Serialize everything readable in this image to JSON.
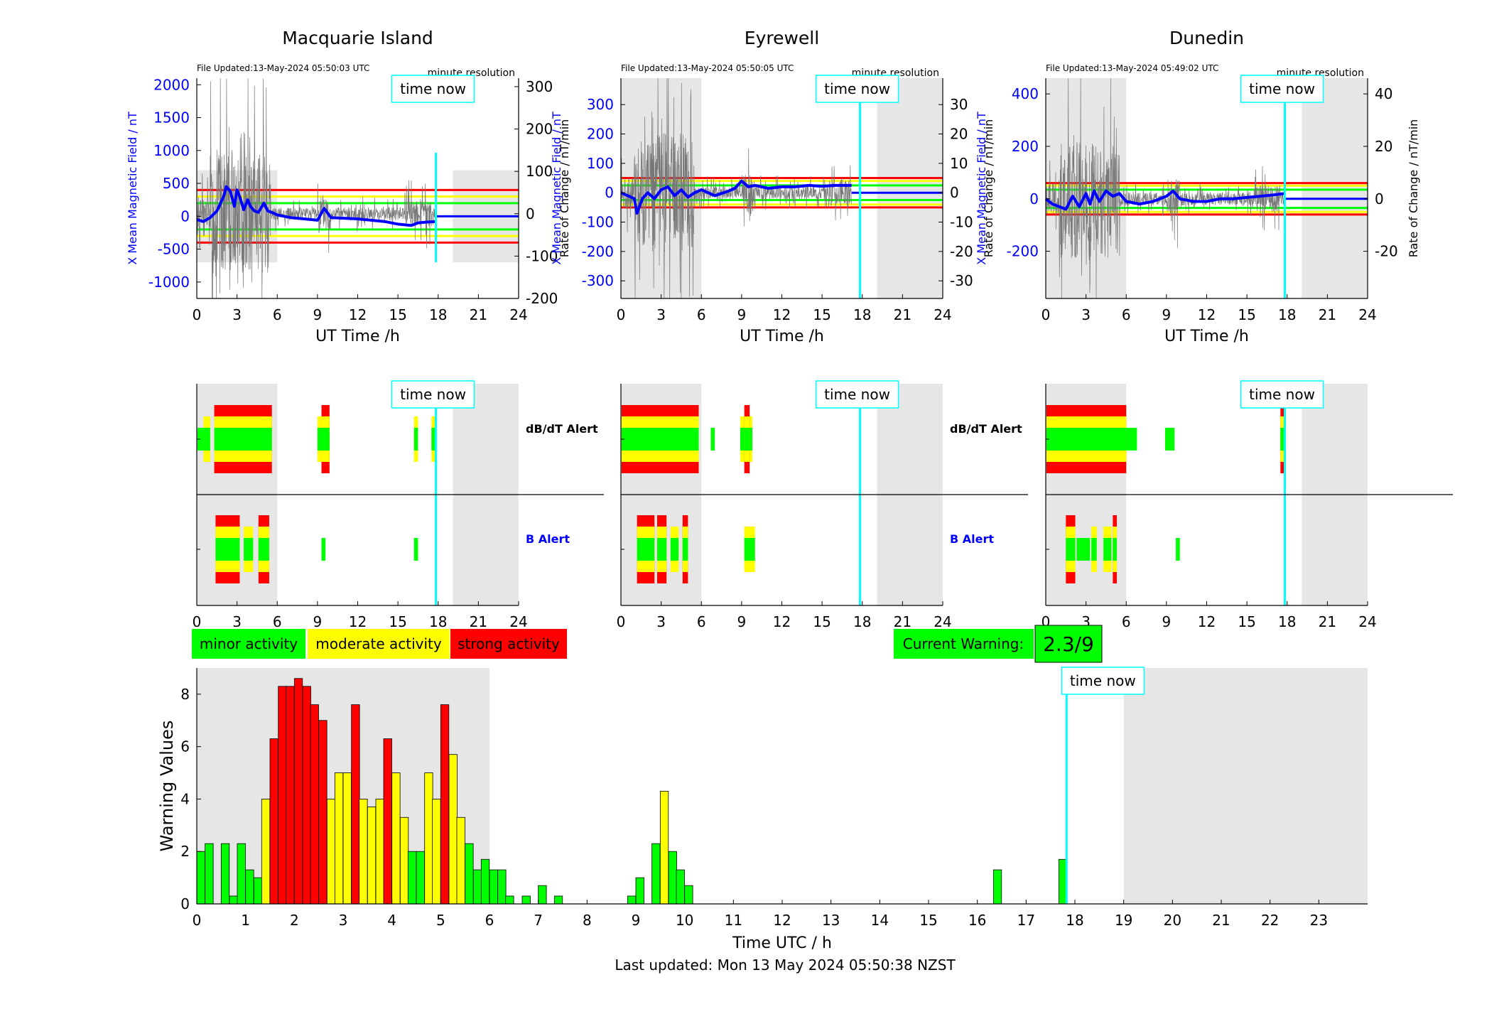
{
  "stations": [
    {
      "name": "Macquarie Island",
      "file_updated": "File Updated:13-May-2024 05:50:03 UTC",
      "resolution": "minute resolution",
      "time_now_label": "time now",
      "x_label": "UT Time /h",
      "y_left_label": "X Mean Magnetic Field / nT",
      "y_right_label": "Rate of Change / nT/min",
      "x_ticks": [
        "0",
        "3",
        "6",
        "9",
        "12",
        "15",
        "18",
        "21",
        "24"
      ],
      "y_left_ticks": [
        2000,
        1500,
        1000,
        500,
        0,
        -500,
        -1000
      ],
      "y_left_range": [
        -1250,
        2100
      ],
      "y_right_ticks": [
        300,
        200,
        100,
        0,
        -100,
        -200
      ],
      "y_right_range": [
        -200,
        320
      ],
      "time_now_hour": 17.83,
      "shade": [
        [
          0,
          6
        ],
        [
          19.1,
          24
        ]
      ],
      "shade_y": [
        -700,
        700
      ],
      "thresholds": {
        "red": 400,
        "yellow": 300,
        "green": 200
      },
      "field_trace": [
        [
          0,
          -50
        ],
        [
          0.5,
          -80
        ],
        [
          1,
          -20
        ],
        [
          1.5,
          80
        ],
        [
          2,
          300
        ],
        [
          2.2,
          450
        ],
        [
          2.5,
          380
        ],
        [
          2.8,
          150
        ],
        [
          3,
          400
        ],
        [
          3.2,
          300
        ],
        [
          3.5,
          100
        ],
        [
          3.8,
          250
        ],
        [
          4,
          150
        ],
        [
          4.3,
          80
        ],
        [
          4.6,
          60
        ],
        [
          5,
          200
        ],
        [
          5.3,
          80
        ],
        [
          5.7,
          50
        ],
        [
          6,
          20
        ],
        [
          7,
          -20
        ],
        [
          8,
          -40
        ],
        [
          9,
          -60
        ],
        [
          9.5,
          120
        ],
        [
          10,
          -20
        ],
        [
          11,
          -30
        ],
        [
          12,
          -40
        ],
        [
          13,
          -60
        ],
        [
          14,
          -80
        ],
        [
          15,
          -120
        ],
        [
          16,
          -140
        ],
        [
          16.5,
          -100
        ],
        [
          17,
          -90
        ],
        [
          17.8,
          -80
        ]
      ],
      "trace_end": 17.83,
      "dbdt_blocks": [
        {
          "start": 0.05,
          "end": 0.5,
          "level": "green"
        },
        {
          "start": 0.5,
          "end": 1.0,
          "level": "moderate"
        },
        {
          "start": 1.3,
          "end": 5.6,
          "level": "strong"
        },
        {
          "start": 9.0,
          "end": 9.9,
          "level": "moderate"
        },
        {
          "start": 9.3,
          "end": 9.9,
          "level": "strong"
        },
        {
          "start": 16.2,
          "end": 16.5,
          "level": "moderate"
        },
        {
          "start": 17.5,
          "end": 17.8,
          "level": "moderate"
        }
      ],
      "b_blocks": [
        {
          "start": 1.4,
          "end": 3.2,
          "level": "strong"
        },
        {
          "start": 3.5,
          "end": 4.2,
          "level": "moderate"
        },
        {
          "start": 4.6,
          "end": 5.4,
          "level": "strong"
        },
        {
          "start": 9.3,
          "end": 9.6,
          "level": "green"
        },
        {
          "start": 16.2,
          "end": 16.5,
          "level": "green"
        }
      ]
    },
    {
      "name": "Eyrewell",
      "file_updated": "File Updated:13-May-2024 05:50:05 UTC",
      "resolution": "minute resolution",
      "time_now_label": "time now",
      "x_label": "UT Time /h",
      "y_left_label": "X Mean Magnetic Field / nT",
      "y_right_label": "Rate of Change / nT/min",
      "x_ticks": [
        "0",
        "3",
        "6",
        "9",
        "12",
        "15",
        "18",
        "21",
        "24"
      ],
      "y_left_ticks": [
        300,
        200,
        100,
        0,
        -100,
        -200,
        -300
      ],
      "y_left_range": [
        -360,
        390
      ],
      "y_right_ticks": [
        30,
        20,
        10,
        0,
        -10,
        -20,
        -30
      ],
      "y_right_range": [
        -36,
        39
      ],
      "time_now_hour": 17.83,
      "shade": [
        [
          0,
          6
        ],
        [
          19.1,
          24
        ]
      ],
      "shade_y": [
        -360,
        390
      ],
      "thresholds": {
        "red": 50,
        "yellow": 40,
        "green": 25
      },
      "field_trace": [
        [
          0,
          0
        ],
        [
          0.5,
          -10
        ],
        [
          1,
          -20
        ],
        [
          1.2,
          -70
        ],
        [
          1.6,
          -20
        ],
        [
          2,
          0
        ],
        [
          2.5,
          -20
        ],
        [
          3,
          10
        ],
        [
          3.5,
          20
        ],
        [
          4,
          -10
        ],
        [
          4.5,
          10
        ],
        [
          5,
          -15
        ],
        [
          5.5,
          0
        ],
        [
          6,
          10
        ],
        [
          7,
          -10
        ],
        [
          8,
          5
        ],
        [
          8.5,
          15
        ],
        [
          9,
          40
        ],
        [
          9.5,
          20
        ],
        [
          10,
          25
        ],
        [
          11,
          15
        ],
        [
          12,
          20
        ],
        [
          13,
          20
        ],
        [
          14,
          25
        ],
        [
          15,
          22
        ],
        [
          16,
          25
        ],
        [
          17.2,
          25
        ],
        [
          17.8,
          25
        ]
      ],
      "trace_end": 17.2,
      "dbdt_blocks": [
        {
          "start": 0.05,
          "end": 5.8,
          "level": "strong"
        },
        {
          "start": 6.7,
          "end": 7.0,
          "level": "green"
        },
        {
          "start": 8.9,
          "end": 9.8,
          "level": "moderate"
        },
        {
          "start": 9.2,
          "end": 9.6,
          "level": "strong"
        }
      ],
      "b_blocks": [
        {
          "start": 1.2,
          "end": 2.5,
          "level": "strong"
        },
        {
          "start": 2.7,
          "end": 3.4,
          "level": "strong"
        },
        {
          "start": 3.7,
          "end": 4.3,
          "level": "moderate"
        },
        {
          "start": 4.6,
          "end": 5.0,
          "level": "strong"
        },
        {
          "start": 9.2,
          "end": 10.0,
          "level": "moderate"
        }
      ]
    },
    {
      "name": "Dunedin",
      "file_updated": "File Updated:13-May-2024 05:49:02 UTC",
      "resolution": "minute resolution",
      "time_now_label": "time now",
      "x_label": "UT Time /h",
      "y_left_label": "X Mean Magnetic Field / nT",
      "y_right_label": "Rate of Change / nT/min",
      "x_ticks": [
        "0",
        "3",
        "6",
        "9",
        "12",
        "15",
        "18",
        "21",
        "24"
      ],
      "y_left_ticks": [
        400,
        200,
        0,
        -200
      ],
      "y_left_range": [
        -380,
        460
      ],
      "y_right_ticks": [
        40,
        20,
        0,
        -20
      ],
      "y_right_range": [
        -38,
        46
      ],
      "time_now_hour": 17.83,
      "shade": [
        [
          0,
          6
        ],
        [
          19.1,
          24
        ]
      ],
      "shade_y": [
        -380,
        460
      ],
      "thresholds": {
        "red": 60,
        "yellow": 50,
        "green": 35
      },
      "field_trace": [
        [
          0,
          0
        ],
        [
          0.5,
          -20
        ],
        [
          1,
          -30
        ],
        [
          1.5,
          -40
        ],
        [
          2,
          10
        ],
        [
          2.5,
          -30
        ],
        [
          3,
          20
        ],
        [
          3.3,
          -20
        ],
        [
          3.6,
          30
        ],
        [
          4,
          -10
        ],
        [
          4.5,
          30
        ],
        [
          5,
          10
        ],
        [
          5.5,
          20
        ],
        [
          6,
          -10
        ],
        [
          7,
          -20
        ],
        [
          8,
          -10
        ],
        [
          9,
          10
        ],
        [
          9.5,
          30
        ],
        [
          10,
          0
        ],
        [
          11,
          -10
        ],
        [
          12,
          -10
        ],
        [
          13,
          0
        ],
        [
          14,
          0
        ],
        [
          15,
          5
        ],
        [
          16,
          10
        ],
        [
          17,
          15
        ],
        [
          17.8,
          20
        ]
      ],
      "trace_end": 17.83,
      "dbdt_blocks": [
        {
          "start": 0.05,
          "end": 6.0,
          "level": "strong"
        },
        {
          "start": 6.0,
          "end": 6.8,
          "level": "green"
        },
        {
          "start": 8.9,
          "end": 9.6,
          "level": "green"
        },
        {
          "start": 17.5,
          "end": 17.8,
          "level": "strong"
        }
      ],
      "b_blocks": [
        {
          "start": 1.5,
          "end": 2.2,
          "level": "strong"
        },
        {
          "start": 2.3,
          "end": 3.3,
          "level": "green"
        },
        {
          "start": 3.4,
          "end": 3.8,
          "level": "moderate"
        },
        {
          "start": 4.3,
          "end": 4.9,
          "level": "moderate"
        },
        {
          "start": 5.0,
          "end": 5.3,
          "level": "strong"
        },
        {
          "start": 9.7,
          "end": 10.0,
          "level": "green"
        }
      ]
    }
  ],
  "alert_labels": {
    "dbdt": "dB/dT Alert",
    "b": "B Alert"
  },
  "legend": {
    "minor": "minor activity",
    "moderate": "moderate activity",
    "strong": "strong activity"
  },
  "current_warning": {
    "label": "Current Warning:",
    "value": "2.3/9"
  },
  "colors": {
    "minor": "#00ff00",
    "moderate": "#ffff00",
    "strong": "#ff0000",
    "time_now": "#00ffff",
    "trace": "#0000ff",
    "shade": "#e6e6e6",
    "axis_left": "#0000ff"
  },
  "warning_chart": {
    "ylabel": "Warning Values",
    "xlabel": "Time UTC / h",
    "ylim": [
      0,
      9
    ],
    "yticks": [
      0,
      2,
      4,
      6,
      8
    ],
    "xlim": [
      0,
      24
    ],
    "xticks": [
      "0",
      "1",
      "2",
      "3",
      "4",
      "5",
      "6",
      "7",
      "8",
      "9",
      "10",
      "11",
      "12",
      "13",
      "14",
      "15",
      "16",
      "17",
      "18",
      "19",
      "20",
      "21",
      "22",
      "23"
    ],
    "time_now_hour": 17.83,
    "time_now_label": "time now",
    "shade": [
      [
        0,
        6
      ],
      [
        19,
        24
      ]
    ]
  },
  "footer": "Last updated: Mon 13 May 2024 05:50:38 NZST",
  "chart_data": {
    "type": "bar",
    "title": "",
    "xlabel": "Time UTC / h",
    "ylabel": "Warning Values",
    "ylim": [
      0,
      9
    ],
    "bar_width_hours": 0.16667,
    "bars": [
      [
        0.0,
        2.0,
        "minor"
      ],
      [
        0.17,
        2.3,
        "minor"
      ],
      [
        0.5,
        2.3,
        "minor"
      ],
      [
        0.67,
        0.3,
        "minor"
      ],
      [
        0.83,
        2.3,
        "minor"
      ],
      [
        1.0,
        1.3,
        "minor"
      ],
      [
        1.17,
        1.0,
        "minor"
      ],
      [
        1.33,
        4.0,
        "moderate"
      ],
      [
        1.5,
        6.3,
        "strong"
      ],
      [
        1.67,
        8.3,
        "strong"
      ],
      [
        1.83,
        8.3,
        "strong"
      ],
      [
        2.0,
        8.6,
        "strong"
      ],
      [
        2.17,
        8.3,
        "strong"
      ],
      [
        2.33,
        7.6,
        "strong"
      ],
      [
        2.5,
        7.0,
        "strong"
      ],
      [
        2.67,
        4.0,
        "moderate"
      ],
      [
        2.83,
        5.0,
        "moderate"
      ],
      [
        3.0,
        5.0,
        "moderate"
      ],
      [
        3.17,
        7.6,
        "strong"
      ],
      [
        3.33,
        4.0,
        "moderate"
      ],
      [
        3.5,
        3.7,
        "moderate"
      ],
      [
        3.67,
        4.0,
        "moderate"
      ],
      [
        3.83,
        6.3,
        "strong"
      ],
      [
        4.0,
        5.0,
        "moderate"
      ],
      [
        4.17,
        3.3,
        "moderate"
      ],
      [
        4.33,
        2.0,
        "minor"
      ],
      [
        4.5,
        2.0,
        "minor"
      ],
      [
        4.67,
        5.0,
        "moderate"
      ],
      [
        4.83,
        4.0,
        "moderate"
      ],
      [
        5.0,
        7.6,
        "strong"
      ],
      [
        5.17,
        5.7,
        "moderate"
      ],
      [
        5.33,
        3.3,
        "moderate"
      ],
      [
        5.5,
        2.3,
        "minor"
      ],
      [
        5.67,
        1.3,
        "minor"
      ],
      [
        5.83,
        1.7,
        "minor"
      ],
      [
        6.0,
        1.3,
        "minor"
      ],
      [
        6.17,
        1.3,
        "minor"
      ],
      [
        6.33,
        0.3,
        "minor"
      ],
      [
        6.67,
        0.3,
        "minor"
      ],
      [
        7.0,
        0.7,
        "minor"
      ],
      [
        7.33,
        0.3,
        "minor"
      ],
      [
        8.83,
        0.3,
        "minor"
      ],
      [
        9.0,
        1.0,
        "minor"
      ],
      [
        9.33,
        2.3,
        "minor"
      ],
      [
        9.5,
        4.3,
        "moderate"
      ],
      [
        9.67,
        2.0,
        "minor"
      ],
      [
        9.83,
        1.3,
        "minor"
      ],
      [
        10.0,
        0.7,
        "minor"
      ],
      [
        16.33,
        1.3,
        "minor"
      ],
      [
        17.67,
        1.7,
        "minor"
      ]
    ]
  }
}
